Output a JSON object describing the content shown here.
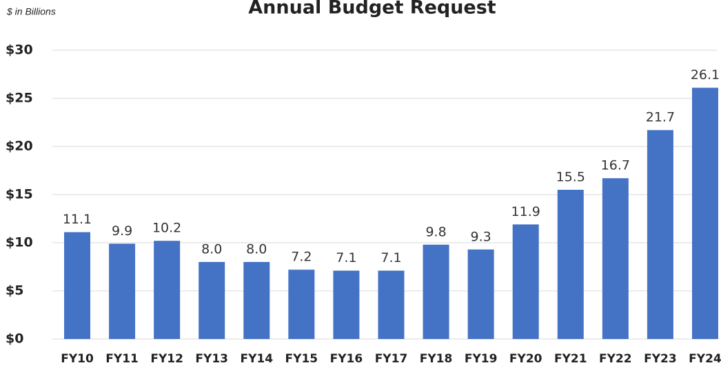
{
  "chart_data": {
    "type": "bar",
    "title": "Annual Budget Request",
    "subtitle": "$ in Billions",
    "categories": [
      "FY10",
      "FY11",
      "FY12",
      "FY13",
      "FY14",
      "FY15",
      "FY16",
      "FY17",
      "FY18",
      "FY19",
      "FY20",
      "FY21",
      "FY22",
      "FY23",
      "FY24"
    ],
    "values": [
      11.1,
      9.9,
      10.2,
      8,
      8,
      7.2,
      7.1,
      7.1,
      9.8,
      9.3,
      11.9,
      15.5,
      16.7,
      21.7,
      26.1
    ],
    "value_labels": [
      "11.1",
      "9.9",
      "10.2",
      "8.0",
      "8.0",
      "7.2",
      "7.1",
      "7.1",
      "9.8",
      "9.3",
      "11.9",
      "15.5",
      "16.7",
      "21.7",
      "26.1"
    ],
    "color": "#4472c4",
    "ylim": [
      0,
      30
    ],
    "yticks": [
      {
        "value": 0,
        "label": "$0"
      },
      {
        "value": 5,
        "label": "$5"
      },
      {
        "value": 10,
        "label": "$10"
      },
      {
        "value": 15,
        "label": "$15"
      },
      {
        "value": 20,
        "label": "$20"
      },
      {
        "value": 25,
        "label": "$25"
      },
      {
        "value": 30,
        "label": "$30"
      }
    ],
    "grid": true
  }
}
